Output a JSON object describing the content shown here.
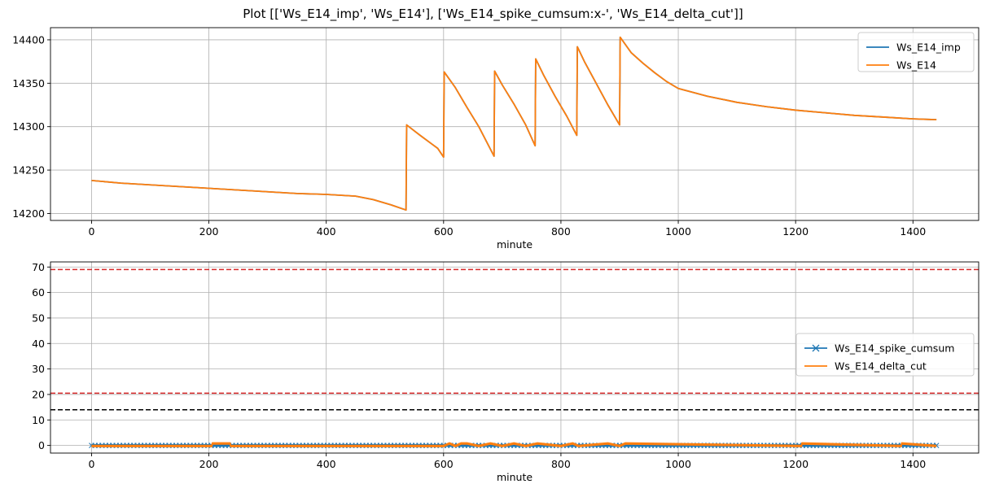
{
  "figure_title": "Plot [['Ws_E14_imp', 'Ws_E14'], ['Ws_E14_spike_cumsum:x-', 'Ws_E14_delta_cut']]",
  "colors": {
    "blue": "#1f77b4",
    "orange": "#ff7f0e",
    "red_dash": "#d62728",
    "black_dash": "#000000",
    "grid": "#b0b0b0"
  },
  "chart_data": [
    {
      "type": "line",
      "xlabel": "minute",
      "ylabel": "",
      "xlim": [
        -70,
        1512
      ],
      "ylim": [
        14192,
        14414
      ],
      "xticks": [
        0,
        200,
        400,
        600,
        800,
        1000,
        1200,
        1400
      ],
      "yticks": [
        14200,
        14250,
        14300,
        14350,
        14400
      ],
      "grid": true,
      "legend_position": "top-right",
      "series": [
        {
          "name": "Ws_E14_imp",
          "x": [
            0,
            50,
            100,
            150,
            200,
            250,
            300,
            350,
            400,
            450,
            480,
            510,
            536,
            537,
            560,
            580,
            590,
            600,
            601,
            620,
            640,
            660,
            686,
            687,
            700,
            720,
            740,
            756,
            757,
            770,
            790,
            810,
            827,
            828,
            840,
            860,
            880,
            900,
            901,
            920,
            940,
            960,
            980,
            1000,
            1050,
            1100,
            1150,
            1200,
            1250,
            1300,
            1350,
            1400,
            1440
          ],
          "values": [
            14238,
            14235,
            14233,
            14231,
            14229,
            14227,
            14225,
            14223,
            14222,
            14220,
            14216,
            14210,
            14204,
            14302,
            14290,
            14280,
            14275,
            14265,
            14363,
            14345,
            14322,
            14300,
            14266,
            14364,
            14348,
            14326,
            14302,
            14278,
            14378,
            14360,
            14335,
            14312,
            14290,
            14392,
            14375,
            14350,
            14325,
            14302,
            14403,
            14385,
            14373,
            14362,
            14352,
            14344,
            14335,
            14328,
            14323,
            14319,
            14316,
            14313,
            14311,
            14309,
            14308
          ]
        },
        {
          "name": "Ws_E14",
          "x": [
            0,
            50,
            100,
            150,
            200,
            250,
            300,
            350,
            400,
            450,
            480,
            510,
            536,
            537,
            560,
            580,
            590,
            600,
            601,
            620,
            640,
            660,
            686,
            687,
            700,
            720,
            740,
            756,
            757,
            770,
            790,
            810,
            827,
            828,
            840,
            860,
            880,
            900,
            901,
            920,
            940,
            960,
            980,
            1000,
            1050,
            1100,
            1150,
            1200,
            1250,
            1300,
            1350,
            1400,
            1440
          ],
          "values": [
            14238,
            14235,
            14233,
            14231,
            14229,
            14227,
            14225,
            14223,
            14222,
            14220,
            14216,
            14210,
            14204,
            14302,
            14290,
            14280,
            14275,
            14265,
            14363,
            14345,
            14322,
            14300,
            14266,
            14364,
            14348,
            14326,
            14302,
            14278,
            14378,
            14360,
            14335,
            14312,
            14290,
            14392,
            14375,
            14350,
            14325,
            14302,
            14403,
            14385,
            14373,
            14362,
            14352,
            14344,
            14335,
            14328,
            14323,
            14319,
            14316,
            14313,
            14311,
            14309,
            14308
          ]
        }
      ]
    },
    {
      "type": "line",
      "xlabel": "minute",
      "ylabel": "",
      "xlim": [
        -70,
        1512
      ],
      "ylim": [
        -3,
        72
      ],
      "xticks": [
        0,
        200,
        400,
        600,
        800,
        1000,
        1200,
        1400
      ],
      "yticks": [
        0,
        10,
        20,
        30,
        40,
        50,
        60,
        70
      ],
      "grid": true,
      "legend_position": "center-right",
      "series": [
        {
          "name": "Ws_E14_spike_cumsum",
          "marker": "x",
          "x": [
            0,
            200,
            400,
            600,
            800,
            1000,
            1200,
            1440
          ],
          "values": [
            0,
            0,
            0,
            0,
            0,
            0,
            0,
            0
          ]
        },
        {
          "name": "Ws_E14_delta_cut",
          "x": [
            0,
            205,
            206,
            236,
            237,
            600,
            610,
            620,
            630,
            640,
            660,
            680,
            700,
            720,
            740,
            760,
            800,
            820,
            830,
            880,
            900,
            910,
            1210,
            1211,
            1380,
            1381,
            1440
          ],
          "values": [
            0,
            0,
            1,
            1,
            0,
            0,
            1,
            0,
            1,
            1,
            0,
            1,
            0,
            1,
            0,
            1,
            0,
            1,
            0,
            1,
            0,
            1,
            0,
            1,
            0,
            1,
            0
          ]
        }
      ],
      "hlines": [
        {
          "y": 69,
          "color": "red_dash",
          "style": "dashed"
        },
        {
          "y": 20.5,
          "color": "red_dash",
          "style": "dashed"
        },
        {
          "y": 14,
          "color": "black_dash",
          "style": "dashed"
        }
      ]
    }
  ]
}
